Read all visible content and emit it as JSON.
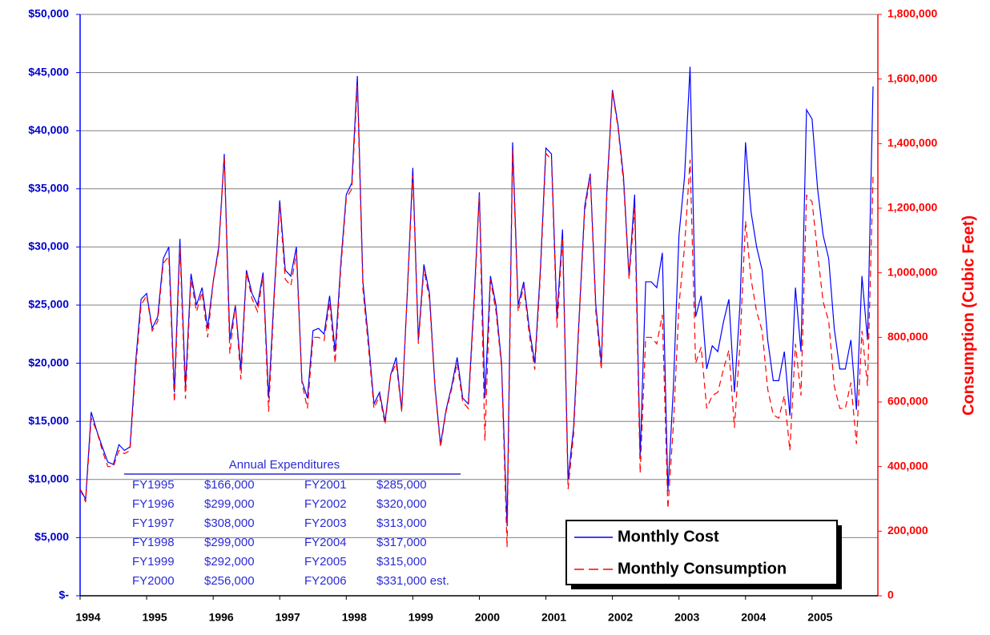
{
  "chart_data": {
    "type": "line",
    "y2label": "Consumption (Cubic Feet)",
    "categories": [
      "1994",
      null,
      null,
      null,
      null,
      null,
      null,
      null,
      null,
      null,
      null,
      null,
      "1995",
      null,
      null,
      null,
      null,
      null,
      null,
      null,
      null,
      null,
      null,
      null,
      "1996",
      null,
      null,
      null,
      null,
      null,
      null,
      null,
      null,
      null,
      null,
      null,
      "1997",
      null,
      null,
      null,
      null,
      null,
      null,
      null,
      null,
      null,
      null,
      null,
      "1998",
      null,
      null,
      null,
      null,
      null,
      null,
      null,
      null,
      null,
      null,
      null,
      "1999",
      null,
      null,
      null,
      null,
      null,
      null,
      null,
      null,
      null,
      null,
      null,
      "2000",
      null,
      null,
      null,
      null,
      null,
      null,
      null,
      null,
      null,
      null,
      null,
      "2001",
      null,
      null,
      null,
      null,
      null,
      null,
      null,
      null,
      null,
      null,
      null,
      "2002",
      null,
      null,
      null,
      null,
      null,
      null,
      null,
      null,
      null,
      null,
      null,
      "2003",
      null,
      null,
      null,
      null,
      null,
      null,
      null,
      null,
      null,
      null,
      null,
      "2004",
      null,
      null,
      null,
      null,
      null,
      null,
      null,
      null,
      null,
      null,
      null,
      "2005",
      null,
      null,
      null,
      null,
      null,
      null,
      null,
      null,
      null,
      null,
      null
    ],
    "series": [
      {
        "name": "Monthly Cost",
        "color": "#0000ff",
        "axis": "y",
        "style": "solid",
        "values": [
          9200,
          8300,
          15800,
          14200,
          12800,
          11500,
          11300,
          13000,
          12500,
          12800,
          20000,
          25500,
          26000,
          23000,
          24000,
          29000,
          30000,
          17500,
          30700,
          18000,
          27700,
          25000,
          26500,
          23000,
          27000,
          30000,
          38000,
          22000,
          25000,
          19500,
          28000,
          26000,
          25000,
          27800,
          17000,
          26000,
          34000,
          28000,
          27500,
          30000,
          18500,
          17000,
          22800,
          23000,
          22500,
          25800,
          21000,
          28500,
          34500,
          35500,
          44700,
          27000,
          22000,
          16500,
          17500,
          15000,
          19000,
          20500,
          16000,
          26000,
          36800,
          22000,
          28500,
          26000,
          18000,
          13000,
          16000,
          18000,
          20500,
          17000,
          16500,
          25000,
          34700,
          17000,
          27500,
          25000,
          20000,
          6000,
          39000,
          25000,
          27000,
          23000,
          20000,
          28000,
          38500,
          38000,
          24000,
          31500,
          10000,
          14500,
          24000,
          33500,
          36300,
          25000,
          20000,
          35000,
          43500,
          40500,
          36000,
          27500,
          34500,
          12000,
          27000,
          27000,
          26500,
          29500,
          9000,
          18000,
          31000,
          36000,
          45500,
          24000,
          25800,
          19500,
          21500,
          21000,
          23500,
          25500,
          17500,
          25000,
          39000,
          33000,
          30000,
          28000,
          22000,
          18500,
          18500,
          21000,
          15500,
          26500,
          21000,
          41800,
          41000,
          35000,
          31000,
          29000,
          23000,
          19500,
          19500,
          22000,
          16000,
          27500,
          22000,
          43800
        ]
      },
      {
        "name": "Monthly Consumption",
        "color": "#ff0000",
        "axis": "y2",
        "style": "dashed",
        "values": [
          330000,
          290000,
          550000,
          510000,
          450000,
          400000,
          400000,
          450000,
          440000,
          450000,
          700000,
          900000,
          930000,
          820000,
          850000,
          1030000,
          1050000,
          600000,
          1080000,
          610000,
          980000,
          880000,
          940000,
          800000,
          970000,
          1070000,
          1360000,
          750000,
          900000,
          670000,
          1000000,
          920000,
          880000,
          990000,
          570000,
          920000,
          1210000,
          980000,
          960000,
          1060000,
          660000,
          580000,
          800000,
          800000,
          790000,
          910000,
          720000,
          1010000,
          1230000,
          1260000,
          1580000,
          950000,
          770000,
          580000,
          620000,
          530000,
          680000,
          720000,
          570000,
          930000,
          1300000,
          780000,
          1010000,
          920000,
          640000,
          460000,
          570000,
          640000,
          720000,
          600000,
          580000,
          880000,
          1240000,
          480000,
          980000,
          880000,
          710000,
          150000,
          1380000,
          880000,
          960000,
          810000,
          700000,
          990000,
          1370000,
          1350000,
          830000,
          1110000,
          330000,
          500000,
          850000,
          1190000,
          1300000,
          880000,
          700000,
          1240000,
          1560000,
          1450000,
          1280000,
          980000,
          1200000,
          380000,
          800000,
          800000,
          780000,
          870000,
          270000,
          530000,
          900000,
          1080000,
          1350000,
          720000,
          770000,
          580000,
          620000,
          630000,
          700000,
          760000,
          520000,
          780000,
          1160000,
          980000,
          880000,
          820000,
          640000,
          560000,
          550000,
          620000,
          450000,
          780000,
          620000,
          1240000,
          1220000,
          1060000,
          910000,
          850000,
          650000,
          580000,
          580000,
          660000,
          470000,
          820000,
          650000,
          1300000
        ]
      }
    ],
    "ylim": [
      0,
      50000
    ],
    "yticks": [
      {
        "value": 0,
        "label": "$-"
      },
      {
        "value": 5000,
        "label": "$5,000"
      },
      {
        "value": 10000,
        "label": "$10,000"
      },
      {
        "value": 15000,
        "label": "$15,000"
      },
      {
        "value": 20000,
        "label": "$20,000"
      },
      {
        "value": 25000,
        "label": "$25,000"
      },
      {
        "value": 30000,
        "label": "$30,000"
      },
      {
        "value": 35000,
        "label": "$35,000"
      },
      {
        "value": 40000,
        "label": "$40,000"
      },
      {
        "value": 45000,
        "label": "$45,000"
      },
      {
        "value": 50000,
        "label": "$50,000"
      }
    ],
    "y2lim": [
      0,
      1800000
    ],
    "y2ticks": [
      0,
      {
        "value": 200000,
        "label": "200,000"
      },
      {
        "value": 400000,
        "label": "400,000"
      },
      {
        "value": 600000,
        "label": "600,000"
      },
      {
        "value": 800000,
        "label": "800,000"
      },
      {
        "value": 1000000,
        "label": "1,000,000"
      },
      {
        "value": 1200000,
        "label": "1,200,000"
      },
      {
        "value": 1400000,
        "label": "1,400,000"
      },
      {
        "value": 1600000,
        "label": "1,600,000"
      },
      {
        "value": 1800000,
        "label": "1,800,000"
      }
    ],
    "grid": true,
    "legend": "lower right",
    "annotations": {
      "title": "Annual Expenditures",
      "rows": [
        [
          "FY1995",
          "$166,000",
          "FY2001",
          "$285,000"
        ],
        [
          "FY1996",
          "$299,000",
          "FY2002",
          "$320,000"
        ],
        [
          "FY1997",
          "$308,000",
          "FY2003",
          "$313,000"
        ],
        [
          "FY1998",
          "$299,000",
          "FY2004",
          "$317,000"
        ],
        [
          "FY1999",
          "$292,000",
          "FY2005",
          "$315,000"
        ],
        [
          "FY2000",
          "$256,000",
          "FY2006",
          "$331,000 est."
        ]
      ]
    }
  }
}
